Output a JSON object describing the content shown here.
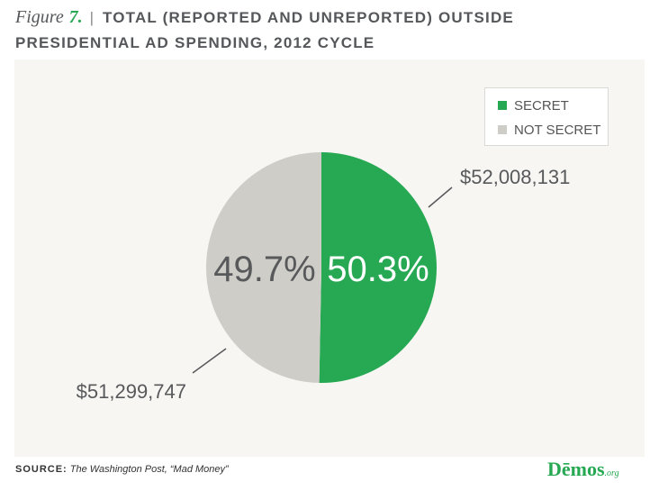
{
  "figure": {
    "label": "Figure",
    "number": "7.",
    "separator": "|",
    "title_line1": "TOTAL (REPORTED AND UNREPORTED) OUTSIDE",
    "title_line2": "PRESIDENTIAL AD SPENDING, 2012 CYCLE"
  },
  "chart_data": {
    "type": "pie",
    "title": "TOTAL (REPORTED AND UNREPORTED) OUTSIDE PRESIDENTIAL AD SPENDING, 2012 CYCLE",
    "slices": [
      {
        "name": "SECRET",
        "percent": 50.3,
        "percent_label": "50.3%",
        "amount": 52008131,
        "amount_label": "$52,008,131",
        "color": "#27a853"
      },
      {
        "name": "NOT SECRET",
        "percent": 49.7,
        "percent_label": "49.7%",
        "amount": 51299747,
        "amount_label": "$51,299,747",
        "color": "#cfcdc8"
      }
    ],
    "legend_position": "top-right"
  },
  "source": {
    "label": "SOURCE:",
    "text": "The Washington Post, “Mad Money”"
  },
  "logo": {
    "main": "Dēmos",
    "suffix": ".org"
  }
}
